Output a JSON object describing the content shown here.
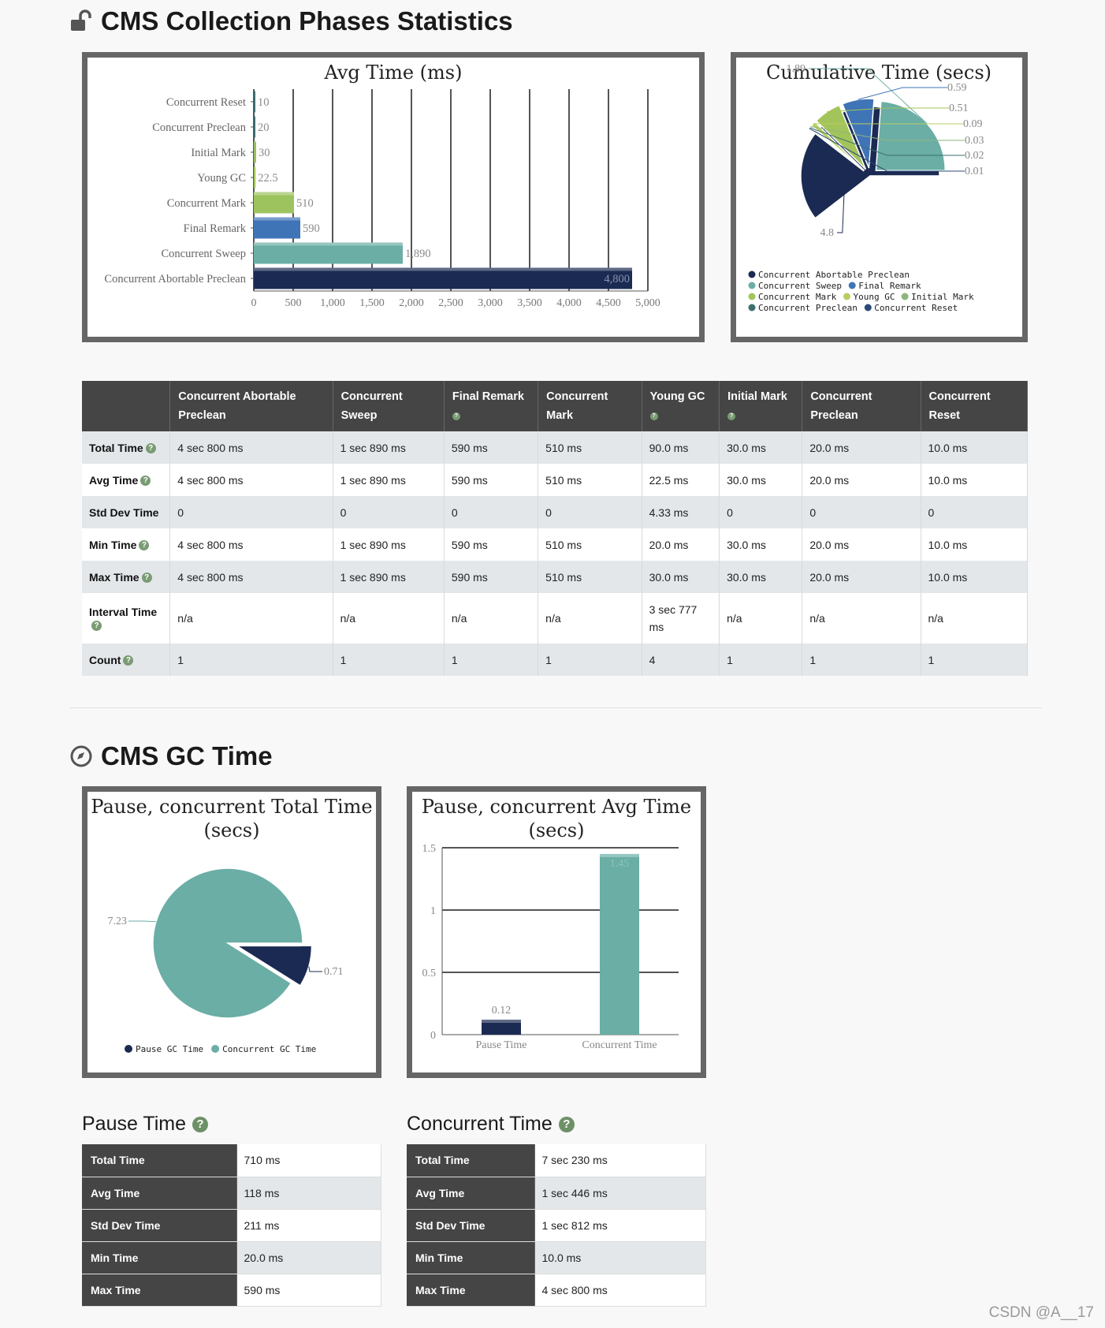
{
  "section1": {
    "title": "CMS Collection Phases Statistics",
    "icon": "unlock-icon"
  },
  "avg_chart": {
    "type": "bar",
    "orientation": "horizontal",
    "title": "Avg Time (ms)",
    "categories": [
      "Concurrent Reset",
      "Concurrent Preclean",
      "Initial Mark",
      "Young GC",
      "Concurrent Mark",
      "Final Remark",
      "Concurrent Sweep",
      "Concurrent Abortable Preclean"
    ],
    "values": [
      10,
      20,
      30,
      22.5,
      510,
      590,
      1890,
      4800
    ],
    "value_labels": [
      "10",
      "20",
      "30",
      "22.5",
      "510",
      "590",
      "1,890",
      "4,800"
    ],
    "colors": [
      "#3d6f70",
      "#3d6f70",
      "#99c063",
      "#a3c45a",
      "#9dc35f",
      "#3f74b7",
      "#6aaea5",
      "#1b2a52"
    ],
    "xlim": [
      0,
      5000
    ],
    "ticks": [
      "0",
      "500",
      "1,000",
      "1,500",
      "2,000",
      "2,500",
      "3,000",
      "3,500",
      "4,000",
      "4,500",
      "5,000"
    ],
    "xlabel": "",
    "ylabel": ""
  },
  "cum_chart": {
    "type": "pie",
    "title": "Cumulative Time (secs)",
    "slices": [
      {
        "name": "Concurrent Abortable Preclean",
        "value": 4.8,
        "label": "4.8",
        "color": "#1b2a52"
      },
      {
        "name": "Concurrent Sweep",
        "value": 1.89,
        "label": "1.89",
        "color": "#6aaea5"
      },
      {
        "name": "Final Remark",
        "value": 0.59,
        "label": "0.59",
        "color": "#3f74b7"
      },
      {
        "name": "Concurrent Mark",
        "value": 0.51,
        "label": "0.51",
        "color": "#a3c45a"
      },
      {
        "name": "Young GC",
        "value": 0.09,
        "label": "0.09",
        "color": "#b6cf63"
      },
      {
        "name": "Initial Mark",
        "value": 0.03,
        "label": "0.03",
        "color": "#8fb67e"
      },
      {
        "name": "Concurrent Preclean",
        "value": 0.02,
        "label": "0.02",
        "color": "#3d6f70"
      },
      {
        "name": "Concurrent Reset",
        "value": 0.01,
        "label": "0.01",
        "color": "#2b4a78"
      }
    ],
    "legend_rows": [
      [
        "Concurrent Abortable Preclean"
      ],
      [
        "Concurrent Sweep",
        "Final Remark"
      ],
      [
        "Concurrent Mark",
        "Young GC",
        "Initial Mark"
      ],
      [
        "Concurrent Preclean",
        "Concurrent Reset"
      ]
    ]
  },
  "phases_table": {
    "columns": [
      "Concurrent Abortable Preclean",
      "Concurrent Sweep",
      "Final Remark",
      "Concurrent Mark",
      "Young GC",
      "Initial Mark",
      "Concurrent Preclean",
      "Concurrent Reset"
    ],
    "rows": [
      {
        "label": "Total Time",
        "values": [
          "4 sec 800 ms",
          "1 sec 890 ms",
          "590 ms",
          "510 ms",
          "90.0 ms",
          "30.0 ms",
          "20.0 ms",
          "10.0 ms"
        ]
      },
      {
        "label": "Avg Time",
        "values": [
          "4 sec 800 ms",
          "1 sec 890 ms",
          "590 ms",
          "510 ms",
          "22.5 ms",
          "30.0 ms",
          "20.0 ms",
          "10.0 ms"
        ]
      },
      {
        "label": "Std Dev Time",
        "values": [
          "0",
          "0",
          "0",
          "0",
          "4.33 ms",
          "0",
          "0",
          "0"
        ]
      },
      {
        "label": "Min Time",
        "values": [
          "4 sec 800 ms",
          "1 sec 890 ms",
          "590 ms",
          "510 ms",
          "20.0 ms",
          "30.0 ms",
          "20.0 ms",
          "10.0 ms"
        ]
      },
      {
        "label": "Max Time",
        "values": [
          "4 sec 800 ms",
          "1 sec 890 ms",
          "590 ms",
          "510 ms",
          "30.0 ms",
          "30.0 ms",
          "20.0 ms",
          "10.0 ms"
        ]
      },
      {
        "label": "Interval Time",
        "values": [
          "n/a",
          "n/a",
          "n/a",
          "n/a",
          "3 sec 777 ms",
          "n/a",
          "n/a",
          "n/a"
        ]
      },
      {
        "label": "Count",
        "values": [
          "1",
          "1",
          "1",
          "1",
          "4",
          "1",
          "1",
          "1"
        ]
      }
    ]
  },
  "section2": {
    "title": "CMS GC Time",
    "icon": "compass-icon"
  },
  "total_chart": {
    "type": "pie",
    "title_line1": "Pause, concurrent Total Time",
    "title_line2": "(secs)",
    "slices": [
      {
        "name": "Concurrent GC Time",
        "value": 7.23,
        "label": "7.23",
        "color": "#6aaea5"
      },
      {
        "name": "Pause GC Time",
        "value": 0.71,
        "label": "0.71",
        "color": "#1b2a52"
      }
    ],
    "legend": [
      "Pause GC Time",
      "Concurrent GC Time"
    ]
  },
  "avg_time_chart": {
    "type": "bar",
    "title_line1": "Pause, concurrent Avg Time",
    "title_line2": "(secs)",
    "categories": [
      "Pause Time",
      "Concurrent Time"
    ],
    "values": [
      0.12,
      1.45
    ],
    "value_labels": [
      "0.12",
      "1.45"
    ],
    "colors": [
      "#1b2a52",
      "#6aaea5"
    ],
    "ylim": [
      0,
      1.5
    ],
    "yticks": [
      "0",
      "0.5",
      "1",
      "1.5"
    ]
  },
  "pause_table": {
    "title": "Pause Time",
    "rows": [
      {
        "label": "Total Time",
        "value": "710 ms"
      },
      {
        "label": "Avg Time",
        "value": "118 ms"
      },
      {
        "label": "Std Dev Time",
        "value": "211 ms"
      },
      {
        "label": "Min Time",
        "value": "20.0 ms"
      },
      {
        "label": "Max Time",
        "value": "590 ms"
      }
    ]
  },
  "concurrent_table": {
    "title": "Concurrent Time",
    "rows": [
      {
        "label": "Total Time",
        "value": "7 sec 230 ms"
      },
      {
        "label": "Avg Time",
        "value": "1 sec 446 ms"
      },
      {
        "label": "Std Dev Time",
        "value": "1 sec 812 ms"
      },
      {
        "label": "Min Time",
        "value": "10.0 ms"
      },
      {
        "label": "Max Time",
        "value": "4 sec 800 ms"
      }
    ]
  },
  "watermark": "CSDN @A__17"
}
